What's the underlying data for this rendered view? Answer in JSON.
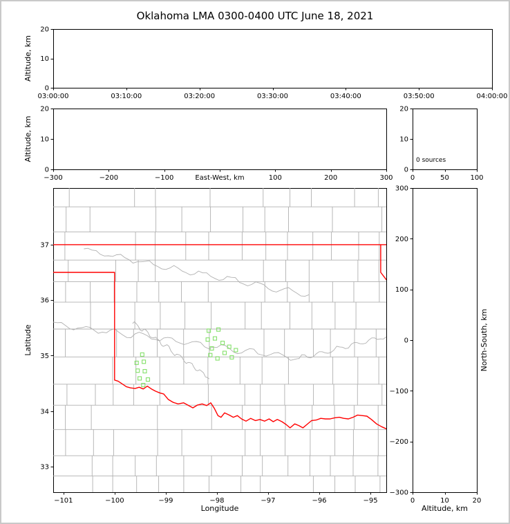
{
  "title": "Oklahoma LMA 0300-0400 UTC June 18, 2021",
  "colors": {
    "axis": "#000000",
    "state_boundary": "#ff0000",
    "county_lines": "#b0b0b0",
    "station_marker": "#84e06a",
    "background": "#ffffff",
    "frame": "#c9c9c9"
  },
  "chart_data": [
    {
      "id": "time-height",
      "type": "scatter",
      "ylabel": "Altitude, km",
      "ylim": [
        0,
        20
      ],
      "yticks": [
        {
          "v": 0,
          "label": "0"
        },
        {
          "v": 10,
          "label": "10"
        },
        {
          "v": 20,
          "label": "20"
        }
      ],
      "xlim": [
        0,
        3600
      ],
      "xticks": [
        {
          "v": 0,
          "label": "03:00:00"
        },
        {
          "v": 600,
          "label": "03:10:00"
        },
        {
          "v": 1200,
          "label": "03:20:00"
        },
        {
          "v": 1800,
          "label": "03:30:00"
        },
        {
          "v": 2400,
          "label": "03:40:00"
        },
        {
          "v": 3000,
          "label": "03:50:00"
        },
        {
          "v": 3600,
          "label": "04:00:00"
        }
      ],
      "points": []
    },
    {
      "id": "ew-height",
      "type": "scatter",
      "ylabel": "Altitude, km",
      "xlabel": "East-West, km",
      "xlabel_inline": true,
      "ylim": [
        0,
        20
      ],
      "yticks": [
        {
          "v": 0,
          "label": "0"
        },
        {
          "v": 10,
          "label": "10"
        },
        {
          "v": 20,
          "label": "20"
        }
      ],
      "xlim": [
        -300,
        300
      ],
      "xticks": [
        {
          "v": -300,
          "label": "−300"
        },
        {
          "v": -200,
          "label": "−200"
        },
        {
          "v": -100,
          "label": "−100"
        },
        {
          "v": 0,
          "label": ""
        },
        {
          "v": 100,
          "label": "100"
        },
        {
          "v": 200,
          "label": "200"
        },
        {
          "v": 300,
          "label": "300"
        }
      ],
      "points": []
    },
    {
      "id": "source-histogram",
      "type": "histogram",
      "annotation": "0 sources",
      "ylim": [
        0,
        20
      ],
      "yticks": [
        {
          "v": 0,
          "label": "0"
        },
        {
          "v": 10,
          "label": "10"
        },
        {
          "v": 20,
          "label": "20"
        }
      ],
      "xlim": [
        0,
        100
      ],
      "xticks": [
        {
          "v": 0,
          "label": "0"
        },
        {
          "v": 50,
          "label": "50"
        },
        {
          "v": 100,
          "label": "100"
        }
      ],
      "values": []
    },
    {
      "id": "plan-view-map",
      "type": "scatter",
      "xlabel": "Longitude",
      "ylabel": "Latitude",
      "xlim": [
        -101.2,
        -94.69
      ],
      "ylim": [
        32.54,
        38.02
      ],
      "xticks": [
        {
          "v": -101,
          "label": "−101"
        },
        {
          "v": -100,
          "label": "−100"
        },
        {
          "v": -99,
          "label": "−99"
        },
        {
          "v": -98,
          "label": "−98"
        },
        {
          "v": -97,
          "label": "−97"
        },
        {
          "v": -96,
          "label": "−96"
        },
        {
          "v": -95,
          "label": "−95"
        }
      ],
      "yticks": [
        {
          "v": 33,
          "label": "33"
        },
        {
          "v": 34,
          "label": "34"
        },
        {
          "v": 35,
          "label": "35"
        },
        {
          "v": 36,
          "label": "36"
        },
        {
          "v": 37,
          "label": "37"
        }
      ],
      "stations": [
        [
          -99.46,
          35.02
        ],
        [
          -99.57,
          34.87
        ],
        [
          -99.43,
          34.89
        ],
        [
          -99.55,
          34.73
        ],
        [
          -99.41,
          34.72
        ],
        [
          -99.51,
          34.59
        ],
        [
          -99.35,
          34.57
        ],
        [
          -99.44,
          34.47
        ],
        [
          -98.16,
          35.45
        ],
        [
          -97.97,
          35.47
        ],
        [
          -98.18,
          35.29
        ],
        [
          -98.04,
          35.31
        ],
        [
          -97.89,
          35.23
        ],
        [
          -98.1,
          35.13
        ],
        [
          -97.76,
          35.16
        ],
        [
          -98.13,
          35.01
        ],
        [
          -97.99,
          34.95
        ],
        [
          -97.85,
          35.05
        ],
        [
          -97.63,
          35.1
        ],
        [
          -97.71,
          34.97
        ]
      ]
    },
    {
      "id": "ns-height",
      "type": "scatter",
      "xlabel": "Altitude, km",
      "ylabel_right": "North-South, km",
      "xlim": [
        0,
        20
      ],
      "xticks": [
        {
          "v": 0,
          "label": "0"
        },
        {
          "v": 10,
          "label": "10"
        },
        {
          "v": 20,
          "label": "20"
        }
      ],
      "ylim": [
        -300,
        300
      ],
      "yticks": [
        {
          "v": 300,
          "label": "300"
        },
        {
          "v": 200,
          "label": "200"
        },
        {
          "v": 100,
          "label": "100"
        },
        {
          "v": 0,
          "label": "0"
        },
        {
          "v": -100,
          "label": "−100"
        },
        {
          "v": -200,
          "label": "−200"
        },
        {
          "v": -300,
          "label": "−300"
        }
      ],
      "points": []
    }
  ]
}
